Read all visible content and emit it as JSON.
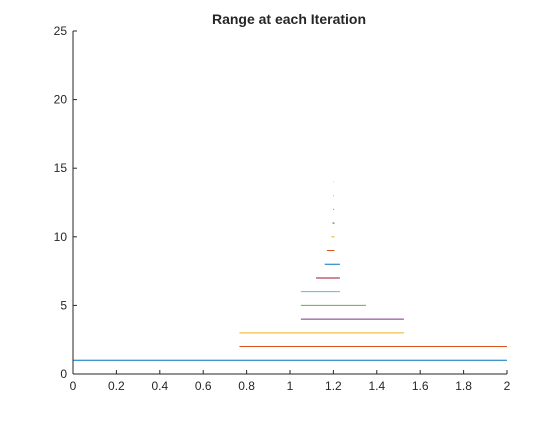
{
  "chart_data": {
    "type": "line",
    "title": "Range at each Iteration",
    "xlabel": "",
    "ylabel": "",
    "xlim": [
      0,
      2
    ],
    "ylim": [
      0,
      25
    ],
    "xticks": [
      0,
      0.2,
      0.4,
      0.6,
      0.8,
      1,
      1.2,
      1.4,
      1.6,
      1.8,
      2
    ],
    "yticks": [
      0,
      5,
      10,
      15,
      20,
      25
    ],
    "grid": false,
    "series": [
      {
        "color": "#0072BD",
        "x": [
          0,
          2
        ],
        "y": [
          1,
          1
        ]
      },
      {
        "color": "#D95319",
        "x": [
          0.767,
          2
        ],
        "y": [
          2,
          2
        ]
      },
      {
        "color": "#EDB120",
        "x": [
          0.767,
          1.525
        ],
        "y": [
          3,
          3
        ]
      },
      {
        "color": "#7E2F8E",
        "x": [
          1.05,
          1.525
        ],
        "y": [
          4,
          4
        ]
      },
      {
        "color": "#77AC30",
        "x": [
          1.05,
          1.35
        ],
        "y": [
          5,
          5
        ]
      },
      {
        "color": "#4DBEEE",
        "x": [
          1.05,
          1.23
        ],
        "y": [
          6,
          6
        ]
      },
      {
        "color": "#A2142F",
        "x": [
          1.12,
          1.23
        ],
        "y": [
          7,
          7
        ]
      },
      {
        "color": "#0072BD",
        "x": [
          1.16,
          1.23
        ],
        "y": [
          8,
          8
        ]
      },
      {
        "color": "#D95319",
        "x": [
          1.17,
          1.205
        ],
        "y": [
          9,
          9
        ]
      },
      {
        "color": "#EDB120",
        "x": [
          1.19,
          1.205
        ],
        "y": [
          10,
          10
        ]
      },
      {
        "color": "#7E2F8E",
        "x": [
          1.196,
          1.205
        ],
        "y": [
          11,
          11
        ]
      },
      {
        "color": "#77AC30",
        "x": [
          1.198,
          1.203
        ],
        "y": [
          12,
          12
        ]
      },
      {
        "color": "#4DBEEE",
        "x": [
          1.199,
          1.202
        ],
        "y": [
          13,
          13
        ]
      },
      {
        "color": "#A2142F",
        "x": [
          1.2,
          1.201
        ],
        "y": [
          14,
          14
        ]
      }
    ]
  }
}
